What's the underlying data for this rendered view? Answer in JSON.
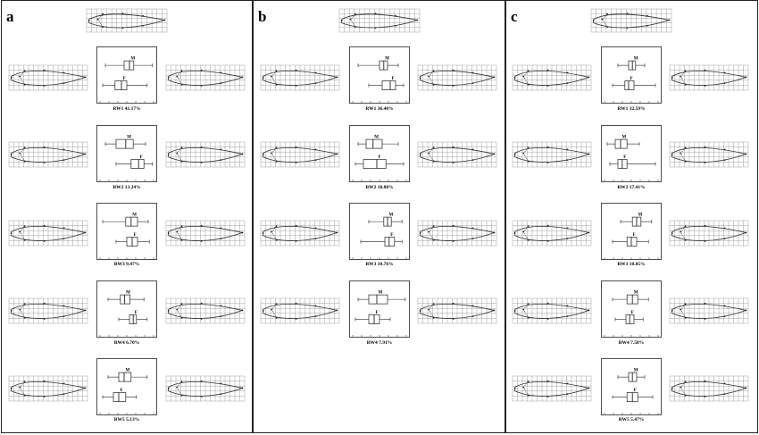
{
  "figure": {
    "panels": [
      {
        "letter": "a",
        "rows": [
          {
            "label": "RW1 41.17%",
            "male": {
              "q1": 0.45,
              "median": 0.55,
              "q3": 0.63,
              "min": 0.1,
              "max": 0.98
            },
            "female": {
              "q1": 0.28,
              "median": 0.4,
              "q3": 0.5,
              "min": 0.05,
              "max": 0.88
            }
          },
          {
            "label": "RW2 13.24%",
            "male": {
              "q1": 0.3,
              "median": 0.48,
              "q3": 0.62,
              "min": 0.1,
              "max": 0.85
            },
            "female": {
              "q1": 0.58,
              "median": 0.72,
              "q3": 0.82,
              "min": 0.3,
              "max": 0.98
            }
          },
          {
            "label": "RW3 9.47%",
            "male": {
              "q1": 0.48,
              "median": 0.58,
              "q3": 0.7,
              "min": 0.05,
              "max": 0.9
            },
            "female": {
              "q1": 0.5,
              "median": 0.6,
              "q3": 0.7,
              "min": 0.3,
              "max": 0.92
            }
          },
          {
            "label": "RW4 6.70%",
            "male": {
              "q1": 0.38,
              "median": 0.46,
              "q3": 0.56,
              "min": 0.15,
              "max": 0.82
            },
            "female": {
              "q1": 0.55,
              "median": 0.62,
              "q3": 0.68,
              "min": 0.35,
              "max": 0.88
            }
          },
          {
            "label": "RW5 5.13%",
            "male": {
              "q1": 0.35,
              "median": 0.45,
              "q3": 0.58,
              "min": 0.15,
              "max": 0.88
            },
            "female": {
              "q1": 0.25,
              "median": 0.35,
              "q3": 0.48,
              "min": 0.05,
              "max": 0.68
            }
          }
        ]
      },
      {
        "letter": "b",
        "rows": [
          {
            "label": "RW1 36.40%",
            "male": {
              "q1": 0.5,
              "median": 0.58,
              "q3": 0.65,
              "min": 0.1,
              "max": 0.85
            },
            "female": {
              "q1": 0.55,
              "median": 0.7,
              "q3": 0.8,
              "min": 0.3,
              "max": 0.95
            }
          },
          {
            "label": "RW2 18.88%",
            "male": {
              "q1": 0.25,
              "median": 0.38,
              "q3": 0.55,
              "min": 0.1,
              "max": 0.85
            },
            "female": {
              "q1": 0.2,
              "median": 0.45,
              "q3": 0.62,
              "min": 0.05,
              "max": 0.95
            }
          },
          {
            "label": "RW3 10.76%",
            "male": {
              "q1": 0.58,
              "median": 0.65,
              "q3": 0.72,
              "min": 0.3,
              "max": 0.92
            },
            "female": {
              "q1": 0.6,
              "median": 0.68,
              "q3": 0.78,
              "min": 0.15,
              "max": 0.92
            }
          },
          {
            "label": "RW4 7.91%",
            "male": {
              "q1": 0.3,
              "median": 0.45,
              "q3": 0.65,
              "min": 0.1,
              "max": 0.98
            },
            "female": {
              "q1": 0.3,
              "median": 0.4,
              "q3": 0.5,
              "min": 0.05,
              "max": 0.7
            }
          }
        ]
      },
      {
        "letter": "c",
        "rows": [
          {
            "label": "RW1 32.59%",
            "male": {
              "q1": 0.45,
              "median": 0.52,
              "q3": 0.58,
              "min": 0.25,
              "max": 0.75
            },
            "female": {
              "q1": 0.38,
              "median": 0.45,
              "q3": 0.55,
              "min": 0.15,
              "max": 0.95
            }
          },
          {
            "label": "RW2 17.41%",
            "male": {
              "q1": 0.2,
              "median": 0.3,
              "q3": 0.42,
              "min": 0.05,
              "max": 0.65
            },
            "female": {
              "q1": 0.25,
              "median": 0.33,
              "q3": 0.42,
              "min": 0.1,
              "max": 0.95
            }
          },
          {
            "label": "RW3 10.05%",
            "male": {
              "q1": 0.52,
              "median": 0.6,
              "q3": 0.68,
              "min": 0.3,
              "max": 0.88
            },
            "female": {
              "q1": 0.42,
              "median": 0.5,
              "q3": 0.6,
              "min": 0.15,
              "max": 0.82
            }
          },
          {
            "label": "RW4 7.58%",
            "male": {
              "q1": 0.42,
              "median": 0.52,
              "q3": 0.62,
              "min": 0.15,
              "max": 0.82
            },
            "female": {
              "q1": 0.4,
              "median": 0.47,
              "q3": 0.55,
              "min": 0.2,
              "max": 0.72
            }
          },
          {
            "label": "RW5 5.47%",
            "male": {
              "q1": 0.45,
              "median": 0.52,
              "q3": 0.6,
              "min": 0.25,
              "max": 0.75
            },
            "female": {
              "q1": 0.42,
              "median": 0.52,
              "q3": 0.62,
              "min": 0.15,
              "max": 0.9
            }
          }
        ]
      }
    ],
    "sex_labels": {
      "male": "M",
      "female": "F"
    },
    "colors": {
      "line": "#222222",
      "grid": "#8a8a8a",
      "border": "#222222"
    }
  }
}
